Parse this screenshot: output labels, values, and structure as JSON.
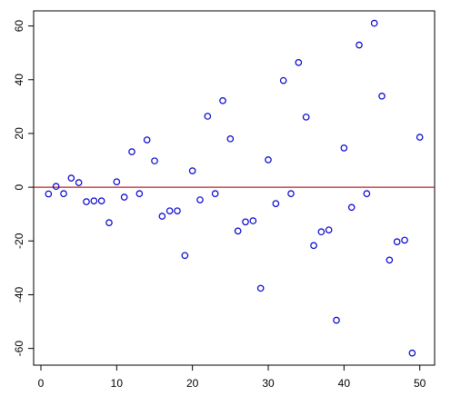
{
  "chart_data": {
    "type": "scatter",
    "x": [
      1,
      2,
      3,
      4,
      5,
      6,
      7,
      8,
      9,
      10,
      11,
      12,
      13,
      14,
      15,
      16,
      17,
      18,
      19,
      20,
      21,
      22,
      23,
      24,
      25,
      26,
      27,
      28,
      29,
      30,
      31,
      32,
      33,
      34,
      35,
      36,
      37,
      38,
      39,
      40,
      41,
      42,
      43,
      44,
      45,
      46,
      47,
      48,
      49,
      50
    ],
    "series": [
      {
        "color": "#0000cc",
        "values": [
          -2.5,
          0.3,
          -2.4,
          3.4,
          1.7,
          -5.4,
          -5.1,
          -5.1,
          -13.2,
          2.0,
          -3.7,
          13.2,
          -2.4,
          17.6,
          9.8,
          -10.8,
          -8.8,
          -8.8,
          -25.4,
          6.1,
          -4.7,
          26.4,
          -2.4,
          32.2,
          18.0,
          -16.3,
          -12.9,
          -12.5,
          -37.6,
          10.2,
          -6.1,
          39.7,
          -2.4,
          46.4,
          26.1,
          -21.7,
          -16.6,
          -15.9,
          -49.5,
          14.6,
          -7.5,
          52.9,
          -2.4,
          61.0,
          33.9,
          -27.1,
          -20.3,
          -19.7,
          -61.7,
          18.6
        ]
      }
    ],
    "xlim": [
      -0.96,
      51.96
    ],
    "ylim": [
      -66.2,
      65.6
    ],
    "xticks": [
      0,
      10,
      20,
      30,
      40,
      50
    ],
    "yticks": [
      -60,
      -40,
      -20,
      0,
      20,
      40,
      60
    ],
    "hline": 0,
    "hline_color": "#b22222"
  }
}
